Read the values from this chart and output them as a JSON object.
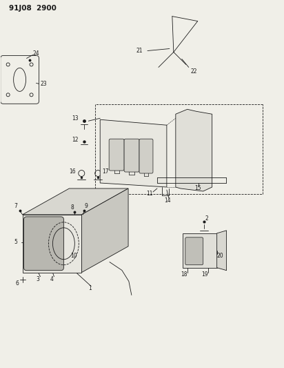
{
  "title": "91J08 2900",
  "bg_color": "#f0efe8",
  "fg_color": "#1a1a1a",
  "figsize": [
    4.12,
    5.33
  ],
  "dpi": 100
}
